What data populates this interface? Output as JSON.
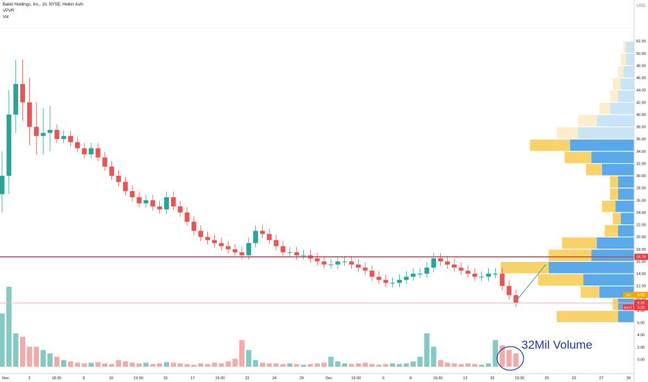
{
  "legend": {
    "symbol_line": "Bakkt Holdings, Inc., 1h, NYSE, Heikin Ashi",
    "indicator_1": "VPVR",
    "indicator_2": "Vol"
  },
  "chart_data": {
    "type": "candlestick",
    "title": "Bakkt Holdings, Inc., 1h, NYSE, Heikin Ashi",
    "currency_label": "USD",
    "price_axis_ticks": [
      "52.00",
      "50.00",
      "48.00",
      "46.00",
      "44.00",
      "42.00",
      "40.00",
      "38.00",
      "36.00",
      "34.00",
      "32.00",
      "30.00",
      "28.00",
      "26.00",
      "24.00",
      "22.00",
      "20.00",
      "18.00",
      "16.00",
      "14.00",
      "12.00",
      "10.00",
      "8.00",
      "6.00",
      "4.00",
      "2.00",
      "0.00"
    ],
    "price_range": [
      -1.2,
      53.5
    ],
    "time_axis_labels": [
      "Nov",
      "3",
      "18:30",
      "8",
      "10",
      "19:30",
      "15",
      "17",
      "19:30",
      "22",
      "24",
      "29",
      "Dec",
      "19:30",
      "6",
      "8",
      "19:30",
      "13",
      "15",
      "19:30",
      "20",
      "22",
      "27",
      "29"
    ],
    "horizontal_line": {
      "price": 16.76,
      "label": "16.76",
      "color": "#f23645"
    },
    "price_labels": [
      {
        "text": "9.85",
        "price": 9.85,
        "color": "#f7a600"
      },
      {
        "text": "9.25",
        "price": 9.25,
        "color": "#f23645"
      },
      {
        "text": "9.20",
        "price": 9.2,
        "color": "#f23645"
      }
    ],
    "small_tags": [
      {
        "text": "Vol",
        "color": "#f7a600"
      },
      {
        "text": "BKKT",
        "color": "#f23645"
      }
    ],
    "candles_close": [
      30.0,
      40.0,
      45.0,
      42.0,
      38.0,
      36.5,
      37.0,
      37.5,
      36.0,
      36.5,
      35.5,
      34.5,
      33.5,
      34.5,
      33.0,
      31.5,
      30.0,
      29.0,
      27.5,
      26.5,
      25.5,
      26.0,
      25.0,
      24.5,
      26.5,
      25.0,
      24.0,
      22.5,
      21.0,
      20.0,
      19.5,
      19.0,
      18.5,
      18.0,
      17.5,
      17.0,
      19.0,
      21.0,
      20.5,
      19.5,
      18.5,
      17.5,
      17.5,
      17.0,
      17.0,
      16.5,
      16.0,
      15.5,
      15.5,
      16.0,
      16.0,
      15.5,
      15.0,
      14.5,
      13.5,
      13.0,
      12.5,
      12.5,
      13.0,
      13.5,
      14.0,
      14.0,
      15.0,
      16.5,
      16.0,
      15.5,
      15.0,
      14.5,
      14.0,
      13.5,
      13.5,
      14.0,
      14.0,
      12.0,
      10.5,
      9.25
    ],
    "vpvr_bins": [
      {
        "price_from": 50.0,
        "price_to": 52.0,
        "up": 3,
        "down": 1
      },
      {
        "price_from": 48.0,
        "price_to": 50.0,
        "up": 3,
        "down": 2
      },
      {
        "price_from": 46.0,
        "price_to": 48.0,
        "up": 4,
        "down": 2
      },
      {
        "price_from": 44.0,
        "price_to": 46.0,
        "up": 5,
        "down": 3
      },
      {
        "price_from": 42.0,
        "price_to": 44.0,
        "up": 6,
        "down": 3
      },
      {
        "price_from": 40.0,
        "price_to": 42.0,
        "up": 9,
        "down": 4
      },
      {
        "price_from": 38.0,
        "price_to": 40.0,
        "up": 14,
        "down": 7
      },
      {
        "price_from": 36.0,
        "price_to": 38.0,
        "up": 21,
        "down": 8
      },
      {
        "price_from": 34.0,
        "price_to": 36.0,
        "up": 24,
        "down": 15
      },
      {
        "price_from": 32.0,
        "price_to": 34.0,
        "up": 16,
        "down": 10
      },
      {
        "price_from": 30.0,
        "price_to": 32.0,
        "up": 12,
        "down": 6
      },
      {
        "price_from": 28.0,
        "price_to": 30.0,
        "up": 6,
        "down": 3
      },
      {
        "price_from": 26.0,
        "price_to": 28.0,
        "up": 6,
        "down": 3
      },
      {
        "price_from": 24.0,
        "price_to": 26.0,
        "up": 7,
        "down": 5
      },
      {
        "price_from": 22.0,
        "price_to": 24.0,
        "up": 5,
        "down": 3
      },
      {
        "price_from": 20.0,
        "price_to": 22.0,
        "up": 6,
        "down": 5
      },
      {
        "price_from": 18.0,
        "price_to": 20.0,
        "up": 14,
        "down": 13
      },
      {
        "price_from": 16.0,
        "price_to": 18.0,
        "up": 16,
        "down": 16
      },
      {
        "price_from": 14.0,
        "price_to": 16.0,
        "up": 32,
        "down": 18
      },
      {
        "price_from": 12.0,
        "price_to": 14.0,
        "up": 19,
        "down": 17
      },
      {
        "price_from": 10.0,
        "price_to": 12.0,
        "up": 13,
        "down": 7
      },
      {
        "price_from": 8.0,
        "price_to": 10.0,
        "up": 6,
        "down": 2
      },
      {
        "price_from": 6.0,
        "price_to": 8.0,
        "up": 6,
        "down": 23
      }
    ],
    "volume_peaks_million": [
      8.0,
      12.0,
      5.0,
      4.5,
      3.0,
      3.0,
      2.5,
      2.0,
      1.5,
      1.0,
      0.8,
      0.6,
      0.5,
      0.6,
      0.7,
      0.5,
      0.4,
      1.0,
      0.8,
      0.6,
      0.5,
      0.6,
      0.4,
      0.5,
      0.7,
      0.6,
      0.5,
      0.4,
      0.3,
      0.5,
      0.4,
      0.6,
      0.5,
      0.8,
      1.2,
      4.0,
      2.5,
      1.0,
      0.6,
      0.5,
      0.5,
      0.4,
      0.5,
      0.4,
      0.3,
      0.4,
      0.5,
      0.6,
      1.5,
      0.8,
      0.5,
      0.4,
      0.5,
      0.6,
      0.4,
      0.3,
      0.4,
      0.5,
      0.4,
      0.5,
      0.8,
      1.5,
      5.0,
      3.0,
      1.0,
      0.6,
      0.5,
      0.4,
      0.5,
      0.4,
      0.3,
      0.5,
      4.0,
      3.2,
      2.5,
      2.0
    ],
    "annotation": {
      "text": "32Mil Volume",
      "color": "#1e3aa8"
    }
  }
}
